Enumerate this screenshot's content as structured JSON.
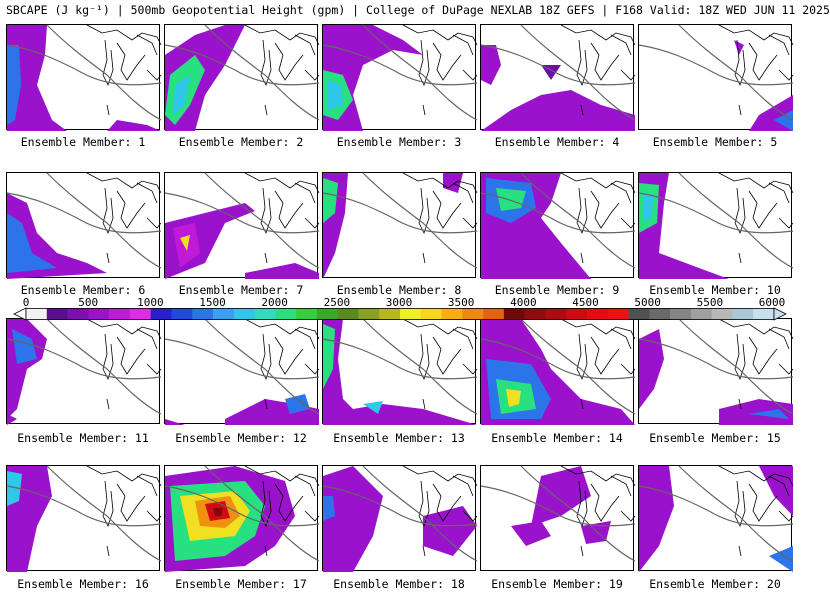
{
  "title": "SBCAPE (J kg⁻¹) | 500mb Geopotential Height (gpm) | College of DuPage NEXLAB 18Z GEFS | F168 Valid: 18Z WED JUN 11 2025",
  "colorbar": {
    "ticks": [
      "0",
      "500",
      "1000",
      "1500",
      "2000",
      "2500",
      "3000",
      "3500",
      "4000",
      "4500",
      "5000",
      "5500",
      "6000"
    ],
    "colors": [
      "#f2f2f2",
      "#5a0d8c",
      "#7a10b0",
      "#9b12cc",
      "#c01ad8",
      "#e02ae8",
      "#2a1fd0",
      "#1f49e0",
      "#2b74ea",
      "#3aa0f0",
      "#2fc8e8",
      "#30dcc0",
      "#28e080",
      "#30d040",
      "#3aa82a",
      "#5a8a1e",
      "#8aa020",
      "#b8b81a",
      "#f0f020",
      "#f8d818",
      "#f8b010",
      "#f08810",
      "#e86010",
      "#700a0a",
      "#900a10",
      "#b00a10",
      "#d00a10",
      "#e80a10",
      "#f01010",
      "#505050",
      "#6a6a6a",
      "#858585",
      "#a0a0a0",
      "#b8b8b8",
      "#a8c8d8",
      "#c8e0ee"
    ]
  },
  "panels": [
    {
      "label": "Ensemble Member: 1"
    },
    {
      "label": "Ensemble Member: 2"
    },
    {
      "label": "Ensemble Member: 3"
    },
    {
      "label": "Ensemble Member: 4"
    },
    {
      "label": "Ensemble Member: 5"
    },
    {
      "label": "Ensemble Member: 6"
    },
    {
      "label": "Ensemble Member: 7"
    },
    {
      "label": "Ensemble Member: 8"
    },
    {
      "label": "Ensemble Member: 9"
    },
    {
      "label": "Ensemble Member: 10"
    },
    {
      "label": "Ensemble Member: 11"
    },
    {
      "label": "Ensemble Member: 12"
    },
    {
      "label": "Ensemble Member: 13"
    },
    {
      "label": "Ensemble Member: 14"
    },
    {
      "label": "Ensemble Member: 15"
    },
    {
      "label": "Ensemble Member: 16"
    },
    {
      "label": "Ensemble Member: 17"
    },
    {
      "label": "Ensemble Member: 18"
    },
    {
      "label": "Ensemble Member: 19"
    },
    {
      "label": "Ensemble Member: 20"
    }
  ]
}
